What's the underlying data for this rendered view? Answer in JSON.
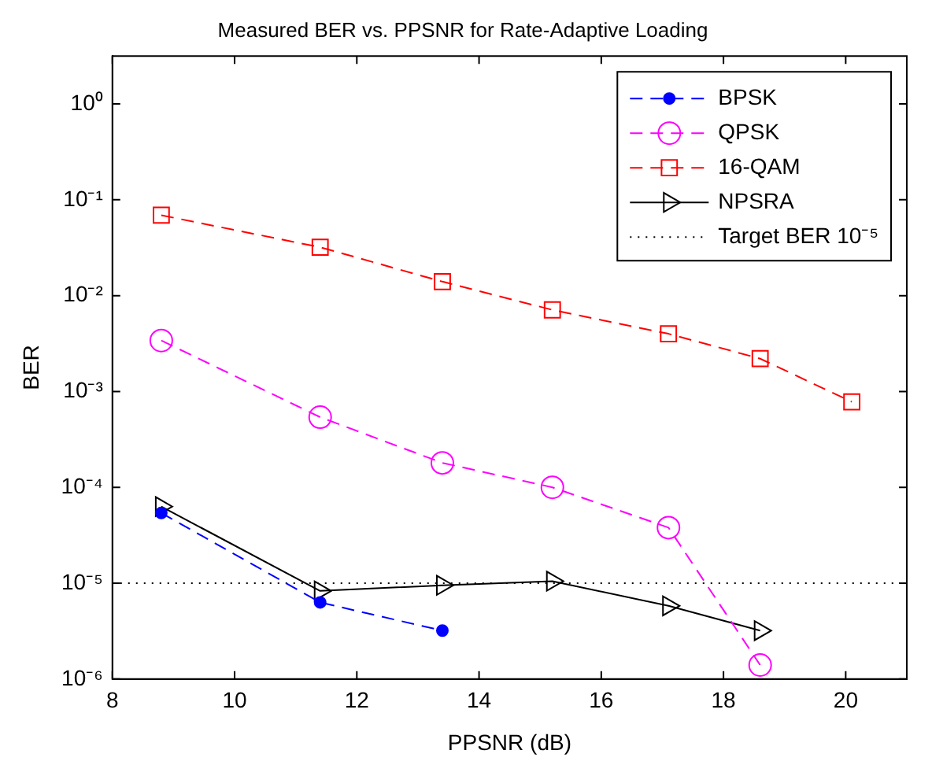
{
  "chart_data": {
    "type": "line",
    "title": "Measured BER vs. PPSNR for Rate-Adaptive Loading",
    "xlabel": "PPSNR (dB)",
    "ylabel": "BER",
    "log": "y",
    "grid": false,
    "legend": "top right",
    "xlim": [
      8,
      21
    ],
    "xticks": [
      8,
      10,
      12,
      14,
      16,
      18,
      20
    ],
    "ylim": [
      1e-06,
      3.16
    ],
    "yticks": [
      {
        "value": 1,
        "label": "10⁰"
      },
      {
        "value": 0.1,
        "label": "10⁻¹"
      },
      {
        "value": 0.01,
        "label": "10⁻²"
      },
      {
        "value": 0.001,
        "label": "10⁻³"
      },
      {
        "value": 0.0001,
        "label": "10⁻⁴"
      },
      {
        "value": 1e-05,
        "label": "10⁻⁵"
      },
      {
        "value": 1e-06,
        "label": "10⁻⁶"
      }
    ],
    "series": [
      {
        "name": "BPSK",
        "color": "#0000ff",
        "marker": "circle",
        "line_style": "dashed",
        "x": [
          8.8,
          11.4,
          13.4
        ],
        "values": [
          5.4e-05,
          6.3e-06,
          3.2e-06
        ]
      },
      {
        "name": "QPSK",
        "color": "#ff00ff",
        "marker": "circle",
        "line_style": "dashed",
        "x": [
          8.8,
          11.4,
          13.4,
          15.2,
          17.1,
          18.6
        ],
        "values": [
          0.0034,
          0.00054,
          0.00018,
          0.0001,
          3.8e-05,
          1.4e-06
        ]
      },
      {
        "name": "16-QAM",
        "color": "#ff0000",
        "marker": "square",
        "line_style": "dashed",
        "x": [
          8.8,
          11.4,
          13.4,
          15.2,
          17.1,
          18.6,
          20.1
        ],
        "values": [
          0.069,
          0.032,
          0.014,
          0.0071,
          0.004,
          0.0022,
          0.00078
        ]
      },
      {
        "name": "NPSRA",
        "color": "#000000",
        "marker": "triangle",
        "line_style": "solid",
        "x": [
          8.8,
          11.4,
          13.4,
          15.2,
          17.1,
          18.6
        ],
        "values": [
          6.3e-05,
          8.3e-06,
          9.5e-06,
          1.05e-05,
          5.8e-06,
          3.2e-06
        ]
      }
    ],
    "ref_lines": [
      {
        "axis": "y",
        "value": 1e-05,
        "label": "Target BER 10⁻⁵",
        "color": "#000000",
        "line_style": "dotted"
      }
    ]
  }
}
